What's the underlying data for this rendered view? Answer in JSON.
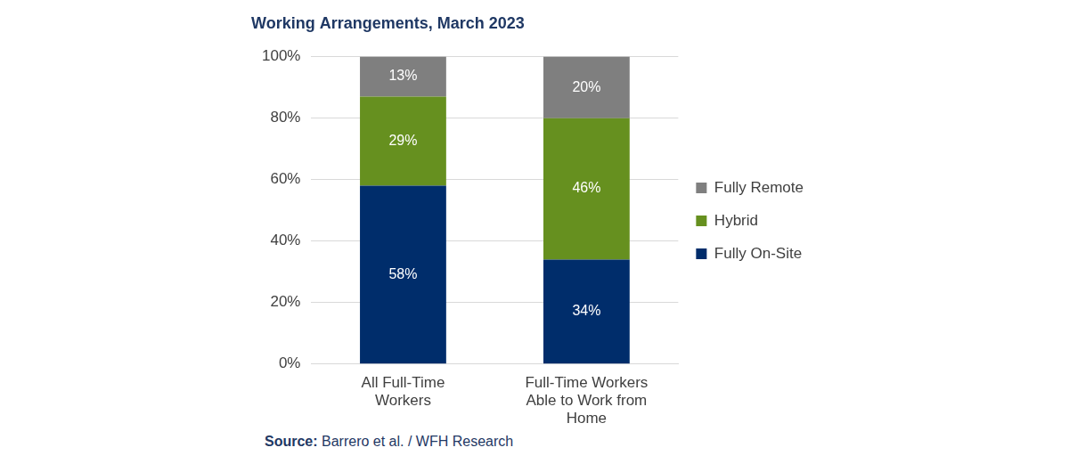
{
  "chart_data": {
    "type": "bar",
    "title": "Working Arrangements, March 2023",
    "source_label": "Source:",
    "source": "Barrero et al. / WFH Research",
    "categories": [
      "All Full-Time Workers",
      "Full-Time Workers Able to Work from Home"
    ],
    "series": [
      {
        "name": "Fully On-Site",
        "color": "#002d6b",
        "values": [
          58,
          34
        ],
        "value_labels": [
          "58%",
          "34%"
        ]
      },
      {
        "name": "Hybrid",
        "color": "#66901f",
        "values": [
          29,
          46
        ],
        "value_labels": [
          "29%",
          "46%"
        ]
      },
      {
        "name": "Fully Remote",
        "color": "#7f7f7f",
        "values": [
          13,
          20
        ],
        "value_labels": [
          "13%",
          "20%"
        ]
      }
    ],
    "ylim": [
      0,
      100
    ],
    "yticks": [
      {
        "value": 0,
        "label": "0%"
      },
      {
        "value": 20,
        "label": "20%"
      },
      {
        "value": 40,
        "label": "40%"
      },
      {
        "value": 60,
        "label": "60%"
      },
      {
        "value": 80,
        "label": "80%"
      },
      {
        "value": 100,
        "label": "100%"
      }
    ],
    "stacked": true,
    "grid": true,
    "legend": "right",
    "data_labels": true
  }
}
